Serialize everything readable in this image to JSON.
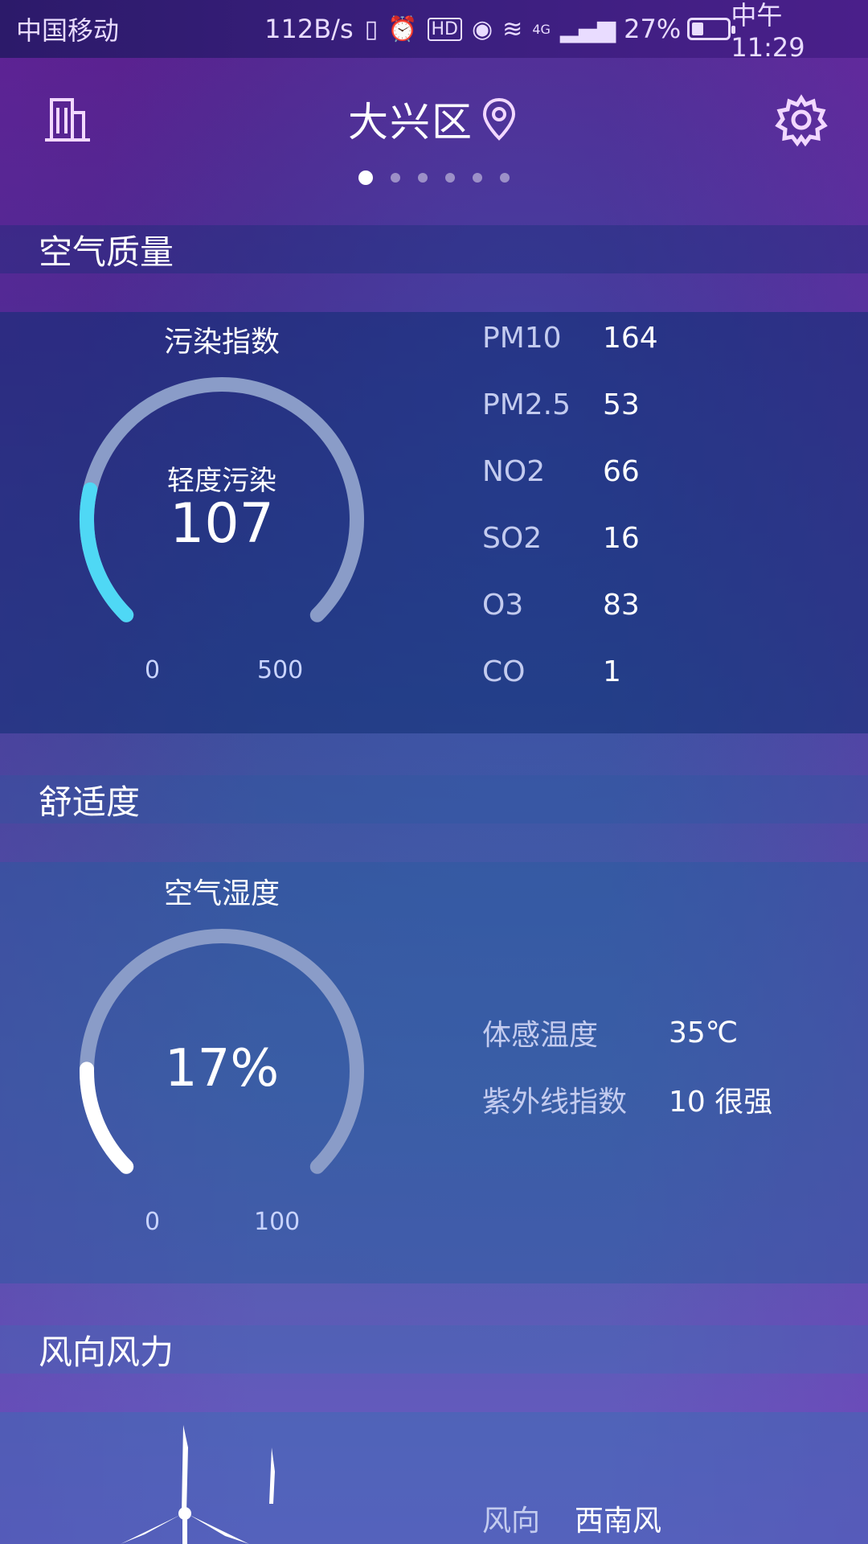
{
  "status_bar": {
    "carrier": "中国移动",
    "speed": "112B/s",
    "signal_label": "4G",
    "battery": "27%",
    "time": "中午11:29"
  },
  "header": {
    "title": "大兴区",
    "left_icon": "building-icon",
    "right_icon": "gear-icon",
    "location_icon": "location-pin-icon"
  },
  "pager": {
    "count": 6,
    "active": 0
  },
  "air_quality": {
    "title": "空气质量",
    "gauge": {
      "label": "污染指数",
      "status": "轻度污染",
      "value": "107",
      "min": "0",
      "max": "500",
      "fraction": 0.214
    },
    "pollutants": [
      {
        "name": "PM10",
        "value": "164"
      },
      {
        "name": "PM2.5",
        "value": "53"
      },
      {
        "name": "NO2",
        "value": "66"
      },
      {
        "name": "SO2",
        "value": "16"
      },
      {
        "name": "O3",
        "value": "83"
      },
      {
        "name": "CO",
        "value": "1"
      }
    ]
  },
  "comfort": {
    "title": "舒适度",
    "gauge": {
      "label": "空气湿度",
      "value": "17%",
      "min": "0",
      "max": "100",
      "fraction": 0.17
    },
    "items": [
      {
        "name": "体感温度",
        "value": "35℃"
      },
      {
        "name": "紫外线指数",
        "value": "10  很强"
      }
    ]
  },
  "wind": {
    "title": "风向风力",
    "items": [
      {
        "name": "风向",
        "value": "西南风"
      }
    ]
  },
  "colors": {
    "gauge_track": "#8a9cc8",
    "gauge_fill_aqi": "#4fd8f5",
    "gauge_fill_humidity": "#ffffff"
  }
}
